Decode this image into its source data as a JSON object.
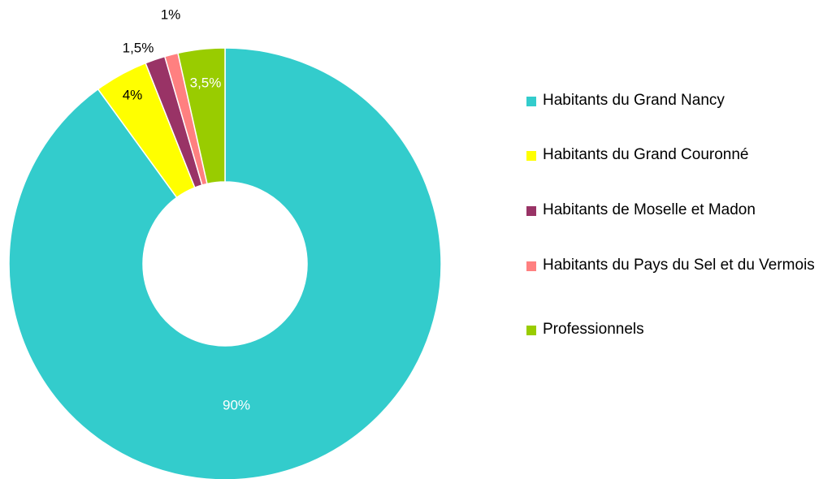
{
  "chart_data": {
    "type": "donut",
    "categories": [
      "Habitants du Grand Nancy",
      "Habitants du Grand Couronné",
      "Habitants de Moselle et Madon",
      "Habitants du Pays du Sel et du Vermois",
      "Professionnels"
    ],
    "values": [
      90,
      4,
      1.5,
      1,
      3.5
    ],
    "value_labels": [
      "90%",
      "4%",
      "1,5%",
      "1%",
      "3,5%"
    ],
    "colors": [
      "#33cccc",
      "#ffff00",
      "#993366",
      "#ff8080",
      "#99cc00"
    ],
    "legend": "right"
  }
}
